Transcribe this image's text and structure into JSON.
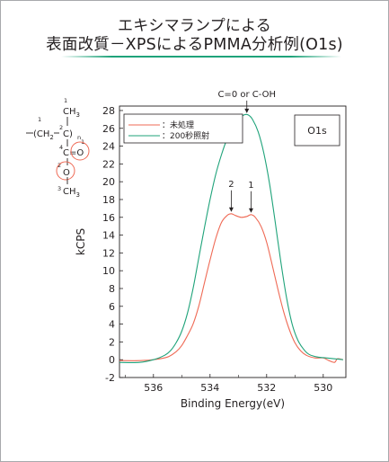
{
  "title_lines": [
    "エキシマランプによる",
    "表面改質－XPSによるPMMA分析例(O1s)"
  ],
  "chart_data": {
    "type": "line",
    "xlabel": "Binding Energy(eV)",
    "ylabel": "kCPS",
    "xlim": [
      537.2,
      529.2
    ],
    "ylim": [
      -2,
      28.5
    ],
    "x_reversed": true,
    "xticks": [
      536,
      534,
      532,
      530
    ],
    "yticks": [
      -2,
      0,
      2,
      4,
      6,
      8,
      10,
      12,
      14,
      16,
      18,
      20,
      22,
      24,
      26,
      28
    ],
    "grid": false,
    "legend_position": "top-left",
    "badge": "O1s",
    "series": [
      {
        "name": "：未処理",
        "color": "#ef6a55",
        "points": [
          [
            537.2,
            -0.1
          ],
          [
            536.5,
            -0.1
          ],
          [
            536.0,
            0.0
          ],
          [
            535.5,
            0.3
          ],
          [
            535.2,
            0.9
          ],
          [
            535.0,
            1.6
          ],
          [
            534.8,
            2.7
          ],
          [
            534.6,
            4.0
          ],
          [
            534.4,
            6.0
          ],
          [
            534.2,
            8.6
          ],
          [
            534.0,
            11.2
          ],
          [
            533.8,
            13.6
          ],
          [
            533.6,
            15.4
          ],
          [
            533.4,
            16.2
          ],
          [
            533.25,
            16.4
          ],
          [
            533.1,
            16.2
          ],
          [
            532.9,
            16.0
          ],
          [
            532.7,
            16.1
          ],
          [
            532.55,
            16.3
          ],
          [
            532.4,
            16.0
          ],
          [
            532.2,
            15.0
          ],
          [
            532.0,
            13.2
          ],
          [
            531.8,
            10.6
          ],
          [
            531.6,
            7.9
          ],
          [
            531.4,
            5.4
          ],
          [
            531.2,
            3.4
          ],
          [
            531.0,
            1.9
          ],
          [
            530.8,
            1.0
          ],
          [
            530.6,
            0.5
          ],
          [
            530.3,
            0.2
          ],
          [
            530.0,
            0.2
          ],
          [
            529.8,
            -0.1
          ],
          [
            529.6,
            -0.3
          ],
          [
            529.5,
            0.1
          ],
          [
            529.3,
            0.0
          ]
        ]
      },
      {
        "name": "：200秒照射",
        "color": "#1fa37a",
        "points": [
          [
            537.2,
            -0.3
          ],
          [
            536.5,
            -0.3
          ],
          [
            536.0,
            0.0
          ],
          [
            535.6,
            0.5
          ],
          [
            535.4,
            1.0
          ],
          [
            535.2,
            1.9
          ],
          [
            535.0,
            3.2
          ],
          [
            534.8,
            5.2
          ],
          [
            534.6,
            8.0
          ],
          [
            534.4,
            11.4
          ],
          [
            534.2,
            14.8
          ],
          [
            534.0,
            18.0
          ],
          [
            533.8,
            20.8
          ],
          [
            533.6,
            23.0
          ],
          [
            533.4,
            24.8
          ],
          [
            533.2,
            26.0
          ],
          [
            533.0,
            27.0
          ],
          [
            532.8,
            27.5
          ],
          [
            532.65,
            27.5
          ],
          [
            532.5,
            27.0
          ],
          [
            532.3,
            25.6
          ],
          [
            532.1,
            23.2
          ],
          [
            531.9,
            19.8
          ],
          [
            531.7,
            15.5
          ],
          [
            531.5,
            11.0
          ],
          [
            531.3,
            7.0
          ],
          [
            531.1,
            4.0
          ],
          [
            530.9,
            2.2
          ],
          [
            530.7,
            1.2
          ],
          [
            530.5,
            0.6
          ],
          [
            530.2,
            0.3
          ],
          [
            529.9,
            0.2
          ],
          [
            529.6,
            0.1
          ],
          [
            529.3,
            0.0
          ]
        ]
      }
    ],
    "annotations": [
      {
        "text": "C=0 or C-OH",
        "x": 532.7,
        "y": 27.5
      },
      {
        "text": "2",
        "x": 533.25,
        "y": 16.4
      },
      {
        "text": "1",
        "x": 532.55,
        "y": 16.3
      }
    ]
  },
  "molecule": {
    "c1": "1",
    "ch3": "CH",
    "sub3": "3",
    "chain": "CH",
    "sub2": "2",
    "c2": "C",
    "sup2": "2",
    "n": "n",
    "c4": "C",
    "sup4": "4",
    "eqO": "=O",
    "o1": "1",
    "o2sup": "2",
    "o2": "O",
    "c3sup": "3",
    "ch3b": "CH",
    "sub3b": "3"
  }
}
